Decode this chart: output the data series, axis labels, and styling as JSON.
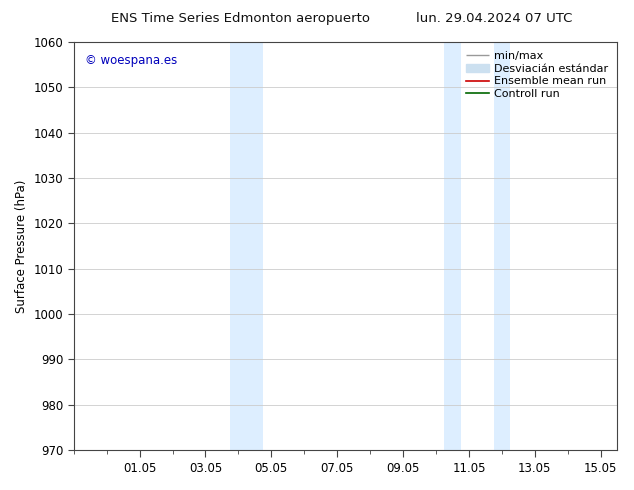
{
  "title_left": "ENS Time Series Edmonton aeropuerto",
  "title_right": "lun. 29.04.2024 07 UTC",
  "ylabel": "Surface Pressure (hPa)",
  "ylim": [
    970,
    1060
  ],
  "yticks": [
    970,
    980,
    990,
    1000,
    1010,
    1020,
    1030,
    1040,
    1050,
    1060
  ],
  "xtick_labels": [
    "01.05",
    "03.05",
    "05.05",
    "07.05",
    "09.05",
    "11.05",
    "13.05",
    "15.05"
  ],
  "xtick_positions": [
    2,
    4,
    6,
    8,
    10,
    12,
    14,
    16
  ],
  "xlim": [
    0,
    16.5
  ],
  "shaded_bands": [
    {
      "x_start": 4.75,
      "x_end": 5.25
    },
    {
      "x_start": 5.25,
      "x_end": 5.75
    },
    {
      "x_start": 11.25,
      "x_end": 11.75
    },
    {
      "x_start": 12.75,
      "x_end": 13.25
    }
  ],
  "shade_color": "#ddeeff",
  "watermark_text": "© woespana.es",
  "watermark_color": "#0000bb",
  "legend_minmax_color": "#999999",
  "legend_std_color": "#cce0f0",
  "legend_ensemble_color": "#cc0000",
  "legend_control_color": "#006600",
  "bg_color": "#ffffff",
  "grid_color": "#cccccc",
  "axis_color": "#444444",
  "font_size": 8.5,
  "title_font_size": 9.5
}
